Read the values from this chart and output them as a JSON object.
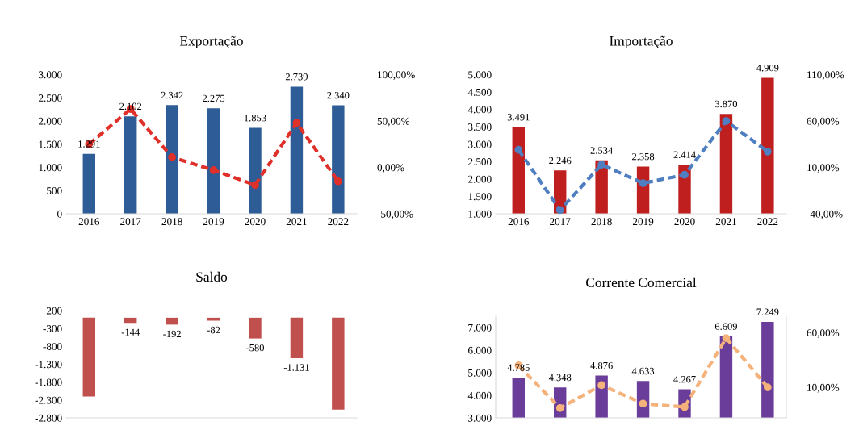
{
  "chart_data": [
    {
      "type": "bar",
      "title": "Exportação",
      "categories": [
        "2016",
        "2017",
        "2018",
        "2019",
        "2020",
        "2021",
        "2022"
      ],
      "ylim": [
        0,
        3000
      ],
      "yticks": [
        0,
        500,
        {
          "value": 1000,
          "label": "1.000"
        },
        {
          "value": 1500,
          "label": "1.500"
        },
        {
          "value": 2000,
          "label": "2.000"
        },
        {
          "value": 2500,
          "label": "2.500"
        },
        {
          "value": 3000,
          "label": "3.000"
        }
      ],
      "y2lim": [
        -50,
        100
      ],
      "y2ticks": [
        {
          "value": -50,
          "label": "-50,00%"
        },
        {
          "value": 0,
          "label": "0,00%"
        },
        {
          "value": 50,
          "label": "50,00%"
        },
        {
          "value": 100,
          "label": "100,00%"
        }
      ],
      "grid": false,
      "series": [
        {
          "color": "#2e5c96",
          "values": [
            1291,
            2102,
            2342,
            2275,
            1853,
            2739,
            2340
          ],
          "value_labels": [
            "1.291",
            "2.102",
            "2.342",
            "2.275",
            "1.853",
            "2.739",
            "2.340"
          ]
        },
        {
          "type": "line",
          "axis": "y2",
          "color": "#e0302a",
          "line_style": "dashed",
          "marker": "circle",
          "values": [
            25,
            63,
            11,
            -3,
            -19,
            48,
            -15
          ]
        }
      ]
    },
    {
      "type": "bar",
      "title": "Importação",
      "categories": [
        "2016",
        "2017",
        "2018",
        "2019",
        "2020",
        "2021",
        "2022"
      ],
      "ylim": [
        1000,
        5000
      ],
      "yticks": [
        {
          "value": 1000,
          "label": "1.000"
        },
        {
          "value": 1500,
          "label": "1.500"
        },
        {
          "value": 2000,
          "label": "2.000"
        },
        {
          "value": 2500,
          "label": "2.500"
        },
        {
          "value": 3000,
          "label": "3.000"
        },
        {
          "value": 3500,
          "label": "3.500"
        },
        {
          "value": 4000,
          "label": "4.000"
        },
        {
          "value": 4500,
          "label": "4.500"
        },
        {
          "value": 5000,
          "label": "5.000"
        }
      ],
      "y2lim": [
        -40,
        110
      ],
      "y2ticks": [
        {
          "value": -40,
          "label": "-40,00%"
        },
        {
          "value": 10,
          "label": "10,00%"
        },
        {
          "value": 60,
          "label": "60,00%"
        },
        {
          "value": 110,
          "label": "110,00%"
        }
      ],
      "grid": false,
      "series": [
        {
          "color": "#c01f1f",
          "values": [
            3491,
            2246,
            2534,
            2358,
            2414,
            3870,
            4909
          ],
          "value_labels": [
            "3.491",
            "2.246",
            "2.534",
            "2.358",
            "2.414",
            "3.870",
            "4.909"
          ]
        },
        {
          "type": "line",
          "axis": "y2",
          "color": "#4f7fc0",
          "line_style": "dashed",
          "marker": "circle",
          "values": [
            29,
            -36,
            13,
            -7,
            2,
            60,
            27
          ]
        }
      ]
    },
    {
      "type": "bar",
      "title": "Saldo",
      "categories": [
        null,
        null,
        null,
        null,
        null,
        null,
        null
      ],
      "tick_labels": "y",
      "ylim": [
        -2800,
        200
      ],
      "yticks": [
        200,
        -300,
        -800,
        {
          "value": -1300,
          "label": "-1.300"
        },
        {
          "value": -1800,
          "label": "-1.800"
        },
        {
          "value": -2300,
          "label": "-2.300"
        },
        {
          "value": -2800,
          "label": "-2.800"
        }
      ],
      "grid": false,
      "series": [
        {
          "color": "#c0504d",
          "values": [
            -2200,
            -144,
            -192,
            -82,
            -580,
            -1131,
            -2569
          ],
          "value_labels": [
            null,
            "-144",
            "-192",
            "-82",
            "-580",
            "-1.131",
            null
          ]
        }
      ]
    },
    {
      "type": "bar",
      "title": "Corrente Comercial",
      "categories": [
        null,
        null,
        null,
        null,
        null,
        null,
        null
      ],
      "tick_labels": "y",
      "ylim": [
        3000,
        7500
      ],
      "yticks": [
        {
          "value": 3000,
          "label": "3.000"
        },
        {
          "value": 4000,
          "label": "4.000"
        },
        {
          "value": 5000,
          "label": "5.000"
        },
        {
          "value": 6000,
          "label": "6.000"
        },
        {
          "value": 7000,
          "label": "7.000"
        }
      ],
      "y2lim": [
        -18,
        75
      ],
      "y2ticks": [
        {
          "value": 10,
          "label": "10,00%"
        },
        {
          "value": 60,
          "label": "60,00%"
        }
      ],
      "grid": false,
      "series": [
        {
          "color": "#6a3d9a",
          "values": [
            4785,
            4348,
            4876,
            4633,
            4267,
            6609,
            7249
          ],
          "value_labels": [
            "4.785",
            "4.348",
            "4.876",
            "4.633",
            "4.267",
            "6.609",
            "7.249"
          ]
        },
        {
          "type": "line",
          "axis": "y2",
          "color": "#f5b27a",
          "line_style": "dashed",
          "marker": "circle",
          "values": [
            30,
            -9,
            12,
            -5,
            -8,
            55,
            10
          ]
        }
      ]
    }
  ]
}
